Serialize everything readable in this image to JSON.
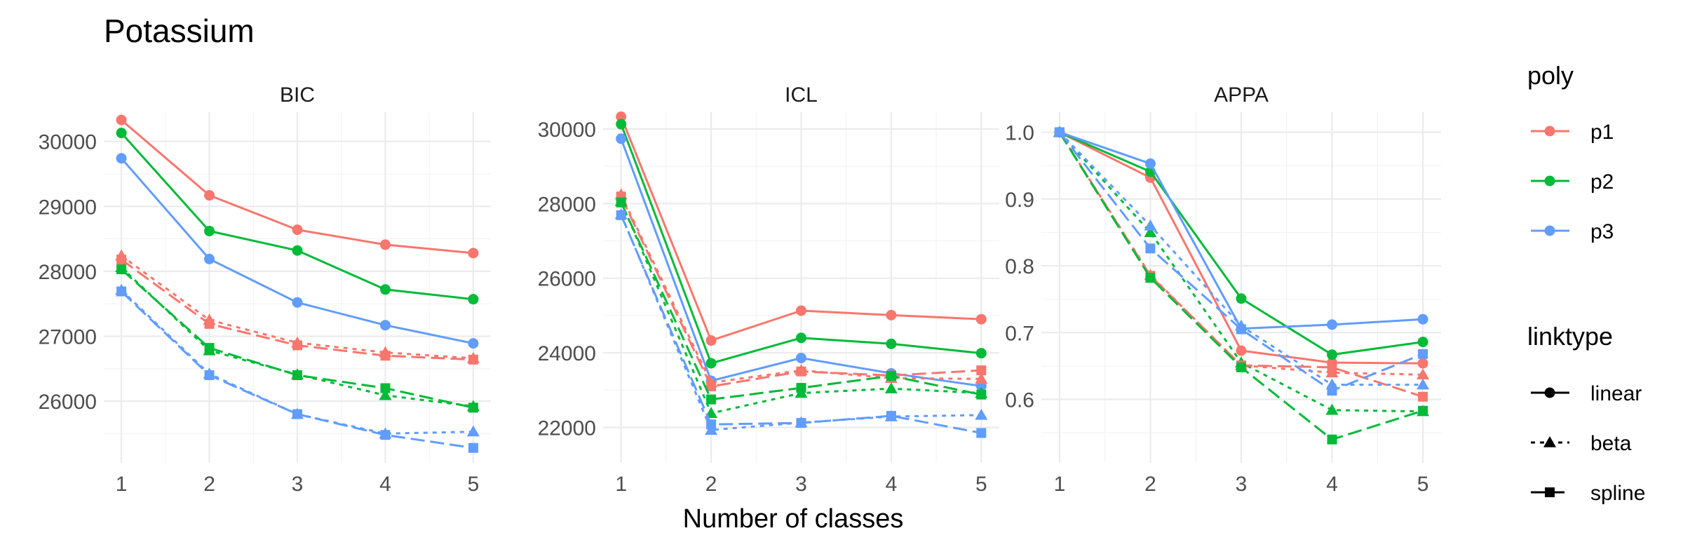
{
  "title": "Potassium",
  "xlabel": "Number of classes",
  "colors": {
    "p1": "#F8766D",
    "p2": "#00BA38",
    "p3": "#619CFF"
  },
  "legends": {
    "poly": {
      "title": "poly",
      "entries": [
        "p1",
        "p2",
        "p3"
      ]
    },
    "linktype": {
      "title": "linktype",
      "entries": [
        "linear",
        "beta",
        "spline"
      ]
    }
  },
  "chart_data": [
    {
      "type": "line",
      "panel": "BIC",
      "x": [
        1,
        2,
        3,
        4,
        5
      ],
      "xticks": [
        "1",
        "2",
        "3",
        "4",
        "5"
      ],
      "ylim": [
        25050,
        30450
      ],
      "yticks": [
        26000,
        27000,
        28000,
        29000,
        30000
      ],
      "series": [
        {
          "poly": "p1",
          "linktype": "linear",
          "values": [
            30330,
            29170,
            28640,
            28410,
            28280
          ]
        },
        {
          "poly": "p2",
          "linktype": "linear",
          "values": [
            30130,
            28620,
            28320,
            27720,
            27570
          ]
        },
        {
          "poly": "p3",
          "linktype": "linear",
          "values": [
            29740,
            28190,
            27520,
            27170,
            26890
          ]
        },
        {
          "poly": "p1",
          "linktype": "beta",
          "values": [
            28240,
            27250,
            26900,
            26750,
            26660
          ]
        },
        {
          "poly": "p2",
          "linktype": "beta",
          "values": [
            28060,
            26780,
            26410,
            26090,
            25920
          ]
        },
        {
          "poly": "p3",
          "linktype": "beta",
          "values": [
            27710,
            26420,
            25800,
            25500,
            25530
          ]
        },
        {
          "poly": "p1",
          "linktype": "spline",
          "values": [
            28180,
            27190,
            26860,
            26700,
            26640
          ]
        },
        {
          "poly": "p2",
          "linktype": "spline",
          "values": [
            28030,
            26820,
            26400,
            26200,
            25900
          ]
        },
        {
          "poly": "p3",
          "linktype": "spline",
          "values": [
            27690,
            26400,
            25800,
            25480,
            25280
          ]
        }
      ]
    },
    {
      "type": "line",
      "panel": "ICL",
      "x": [
        1,
        2,
        3,
        4,
        5
      ],
      "xticks": [
        "1",
        "2",
        "3",
        "4",
        "5"
      ],
      "ylim": [
        21050,
        30450
      ],
      "yticks": [
        22000,
        24000,
        26000,
        28000,
        30000
      ],
      "series": [
        {
          "poly": "p1",
          "linktype": "linear",
          "values": [
            30330,
            24330,
            25130,
            25010,
            24900
          ]
        },
        {
          "poly": "p2",
          "linktype": "linear",
          "values": [
            30130,
            23720,
            24400,
            24240,
            23990
          ]
        },
        {
          "poly": "p3",
          "linktype": "linear",
          "values": [
            29740,
            23250,
            23860,
            23450,
            23110
          ]
        },
        {
          "poly": "p1",
          "linktype": "beta",
          "values": [
            28240,
            23200,
            23530,
            23320,
            23300
          ]
        },
        {
          "poly": "p2",
          "linktype": "beta",
          "values": [
            28060,
            22380,
            22920,
            23040,
            22920
          ]
        },
        {
          "poly": "p3",
          "linktype": "beta",
          "values": [
            27710,
            21930,
            22130,
            22290,
            22330
          ]
        },
        {
          "poly": "p1",
          "linktype": "spline",
          "values": [
            28190,
            23100,
            23500,
            23390,
            23530
          ]
        },
        {
          "poly": "p2",
          "linktype": "spline",
          "values": [
            28030,
            22750,
            23060,
            23380,
            22880
          ]
        },
        {
          "poly": "p3",
          "linktype": "spline",
          "values": [
            27690,
            22080,
            22120,
            22310,
            21850
          ]
        }
      ]
    },
    {
      "type": "line",
      "panel": "APPA",
      "x": [
        1,
        2,
        3,
        4,
        5
      ],
      "xticks": [
        "1",
        "2",
        "3",
        "4",
        "5"
      ],
      "ylim": [
        0.505,
        1.03
      ],
      "yticks": [
        0.6,
        0.7,
        0.8,
        0.9,
        1.0
      ],
      "yticklabels": [
        "0.6",
        "0.7",
        "0.8",
        "0.9",
        "1.0"
      ],
      "series": [
        {
          "poly": "p1",
          "linktype": "linear",
          "values": [
            1.0,
            0.932,
            0.673,
            0.655,
            0.654
          ]
        },
        {
          "poly": "p2",
          "linktype": "linear",
          "values": [
            1.0,
            0.941,
            0.751,
            0.667,
            0.686
          ]
        },
        {
          "poly": "p3",
          "linktype": "linear",
          "values": [
            1.0,
            0.953,
            0.706,
            0.712,
            0.72
          ]
        },
        {
          "poly": "p1",
          "linktype": "beta",
          "values": [
            1.0,
            0.786,
            0.651,
            0.64,
            0.637
          ]
        },
        {
          "poly": "p2",
          "linktype": "beta",
          "values": [
            1.0,
            0.85,
            0.655,
            0.584,
            0.582
          ]
        },
        {
          "poly": "p3",
          "linktype": "beta",
          "values": [
            1.0,
            0.86,
            0.71,
            0.622,
            0.622
          ]
        },
        {
          "poly": "p1",
          "linktype": "spline",
          "values": [
            1.0,
            0.785,
            0.651,
            0.648,
            0.604
          ]
        },
        {
          "poly": "p2",
          "linktype": "spline",
          "values": [
            1.0,
            0.782,
            0.648,
            0.54,
            0.583
          ]
        },
        {
          "poly": "p3",
          "linktype": "spline",
          "values": [
            1.0,
            0.826,
            0.705,
            0.613,
            0.668
          ]
        }
      ]
    }
  ]
}
